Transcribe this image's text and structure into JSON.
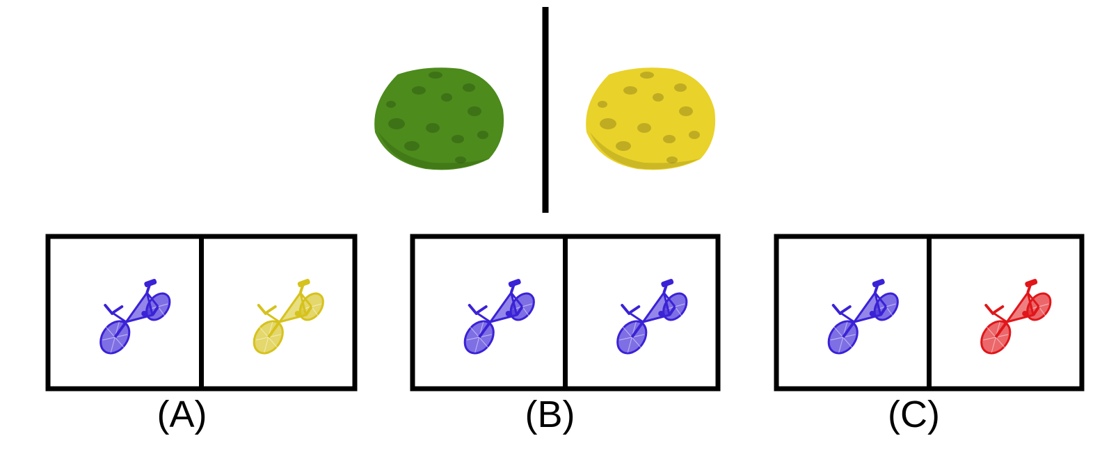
{
  "example": {
    "left_item": {
      "object": "cookie",
      "color": "#4c8b1c"
    },
    "right_item": {
      "object": "cookie",
      "color": "#e9d22a"
    }
  },
  "options": [
    {
      "label": "(A)",
      "left": {
        "object": "bicycle",
        "color": "#3a22d6"
      },
      "right": {
        "object": "bicycle",
        "color": "#d6c21c"
      }
    },
    {
      "label": "(B)",
      "left": {
        "object": "bicycle",
        "color": "#3a22d6"
      },
      "right": {
        "object": "bicycle",
        "color": "#3a22d6"
      }
    },
    {
      "label": "(C)",
      "left": {
        "object": "bicycle",
        "color": "#3a22d6"
      },
      "right": {
        "object": "bicycle",
        "color": "#e0161a"
      }
    }
  ]
}
